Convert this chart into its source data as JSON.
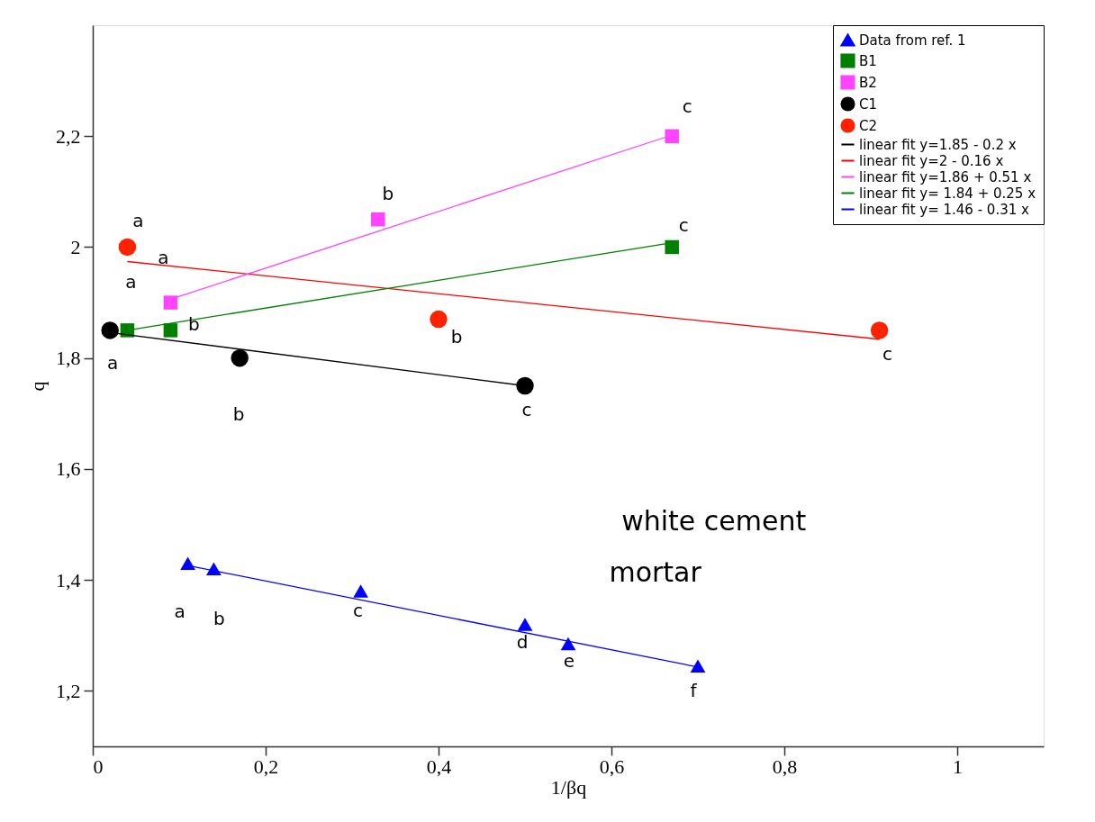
{
  "chart_data": {
    "type": "scatter",
    "xlabel": "1/βq",
    "ylabel": "q",
    "xlim": [
      0,
      1.1
    ],
    "ylim": [
      1.1,
      2.4
    ],
    "xticks": [
      0,
      {
        "value": 0.2,
        "label": "0,2"
      },
      {
        "value": 0.4,
        "label": "0,4"
      },
      {
        "value": 0.6,
        "label": "0,6"
      },
      {
        "value": 0.8,
        "label": "0,8"
      },
      1
    ],
    "yticks": [
      {
        "value": 1.2,
        "label": "1,2"
      },
      {
        "value": 1.4,
        "label": "1,4"
      },
      {
        "value": 1.6,
        "label": "1,6"
      },
      {
        "value": 1.8,
        "label": "1,8"
      },
      2,
      {
        "value": 2.2,
        "label": "2,2"
      }
    ],
    "grid": false,
    "legend": "top right",
    "series": [
      {
        "name": "Data from ref. 1",
        "marker": "triangle",
        "color": "#0000ff",
        "x": [
          0.11,
          0.14,
          0.31,
          0.5,
          0.55,
          0.7
        ],
        "values": [
          1.43,
          1.42,
          1.38,
          1.32,
          1.285,
          1.245
        ]
      },
      {
        "name": "B1",
        "marker": "square",
        "color": "#008000",
        "x": [
          0.04,
          0.09,
          0.67
        ],
        "values": [
          1.85,
          1.85,
          2.0
        ]
      },
      {
        "name": "B2",
        "marker": "square",
        "color": "#ff44ff",
        "x": [
          0.09,
          0.33,
          0.67
        ],
        "values": [
          1.9,
          2.05,
          2.2
        ]
      },
      {
        "name": "C1",
        "marker": "circle",
        "color": "#000000",
        "x": [
          0.02,
          0.17,
          0.5
        ],
        "values": [
          1.85,
          1.8,
          1.75
        ]
      },
      {
        "name": "C2",
        "marker": "circle",
        "color": "#ff2200",
        "x": [
          0.04,
          0.4,
          0.91
        ],
        "values": [
          2.0,
          1.87,
          1.85
        ]
      },
      {
        "name": "linear fit y=1.85 - 0.2 x",
        "type": "line",
        "color": "#000000",
        "x": [
          0.02,
          0.5
        ],
        "values": [
          1.846,
          1.75
        ]
      },
      {
        "name": "linear fit y=2 - 0.16 x",
        "type": "line",
        "color": "#ff0000",
        "x": [
          0.04,
          0.91
        ],
        "values": [
          1.974,
          1.834
        ]
      },
      {
        "name": "linear fit y=1.86 + 0.51 x",
        "type": "line",
        "color": "#ff44ff",
        "x": [
          0.09,
          0.67
        ],
        "values": [
          1.906,
          2.202
        ]
      },
      {
        "name": "linear fit y= 1.84 + 0.25 x",
        "type": "line",
        "color": "#008000",
        "x": [
          0.04,
          0.67
        ],
        "values": [
          1.85,
          2.008
        ]
      },
      {
        "name": "linear fit y= 1.46 - 0.31 x",
        "type": "line",
        "color": "#0000ff",
        "x": [
          0.11,
          0.7
        ],
        "values": [
          1.426,
          1.243
        ]
      }
    ],
    "annotations": [
      {
        "text": "a",
        "x": 0.11,
        "y": 1.43
      },
      {
        "text": "b",
        "x": 0.14,
        "y": 1.42
      },
      {
        "text": "c",
        "x": 0.31,
        "y": 1.38
      },
      {
        "text": "d",
        "x": 0.5,
        "y": 1.32
      },
      {
        "text": "e",
        "x": 0.55,
        "y": 1.285
      },
      {
        "text": "f",
        "x": 0.7,
        "y": 1.245
      },
      {
        "text": "a",
        "x": 0.04,
        "y": 1.85
      },
      {
        "text": "b",
        "x": 0.09,
        "y": 1.85
      },
      {
        "text": "c",
        "x": 0.67,
        "y": 2.0
      },
      {
        "text": "a",
        "x": 0.09,
        "y": 1.9
      },
      {
        "text": "b",
        "x": 0.33,
        "y": 2.05
      },
      {
        "text": "c",
        "x": 0.67,
        "y": 2.2
      },
      {
        "text": "a",
        "x": 0.02,
        "y": 1.85
      },
      {
        "text": "b",
        "x": 0.17,
        "y": 1.8
      },
      {
        "text": "c",
        "x": 0.5,
        "y": 1.75
      },
      {
        "text": "a",
        "x": 0.04,
        "y": 2.0
      },
      {
        "text": "b",
        "x": 0.4,
        "y": 1.87
      },
      {
        "text": "c",
        "x": 0.91,
        "y": 1.85
      },
      "white cement",
      "mortar"
    ]
  }
}
